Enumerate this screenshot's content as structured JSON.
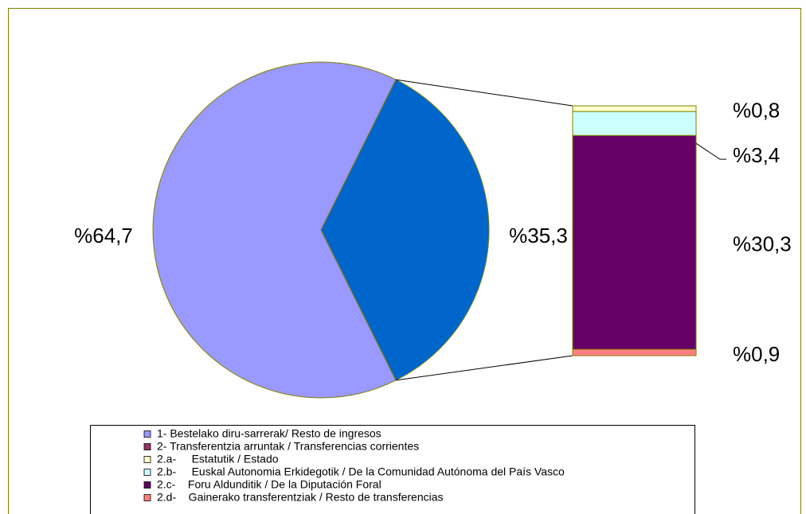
{
  "chart_data": {
    "type": "bar-of-pie",
    "pie": {
      "categories": [
        "1- Bestelako diru-sarrerak/ Resto de ingresos",
        "2- Transferentzia arruntak / Transferencias corrientes"
      ],
      "values": [
        64.7,
        35.3
      ],
      "value_labels": [
        "%64,7",
        "%35,3"
      ],
      "colors": [
        "#9999ff",
        "#0066cc"
      ],
      "legend_colors": [
        "#9999ff",
        "#993366"
      ]
    },
    "bar": {
      "categories": [
        "2.a-     Estatutik / Estado",
        "2.b-     Euskal Autonomia Erkidegotik / De la Comunidad Autónoma del País Vasco",
        "2.c-    Foru Aldunditik / De la Diputación Foral",
        "2.d-    Gainerako transferentziak / Resto de transferencias"
      ],
      "values": [
        0.8,
        3.4,
        30.3,
        0.9
      ],
      "value_labels": [
        "%0,8",
        "%3,4",
        "%30,3",
        "%0,9"
      ],
      "colors": [
        "#ffffcc",
        "#ccffff",
        "#660066",
        "#ff8080"
      ]
    },
    "legend": true
  }
}
